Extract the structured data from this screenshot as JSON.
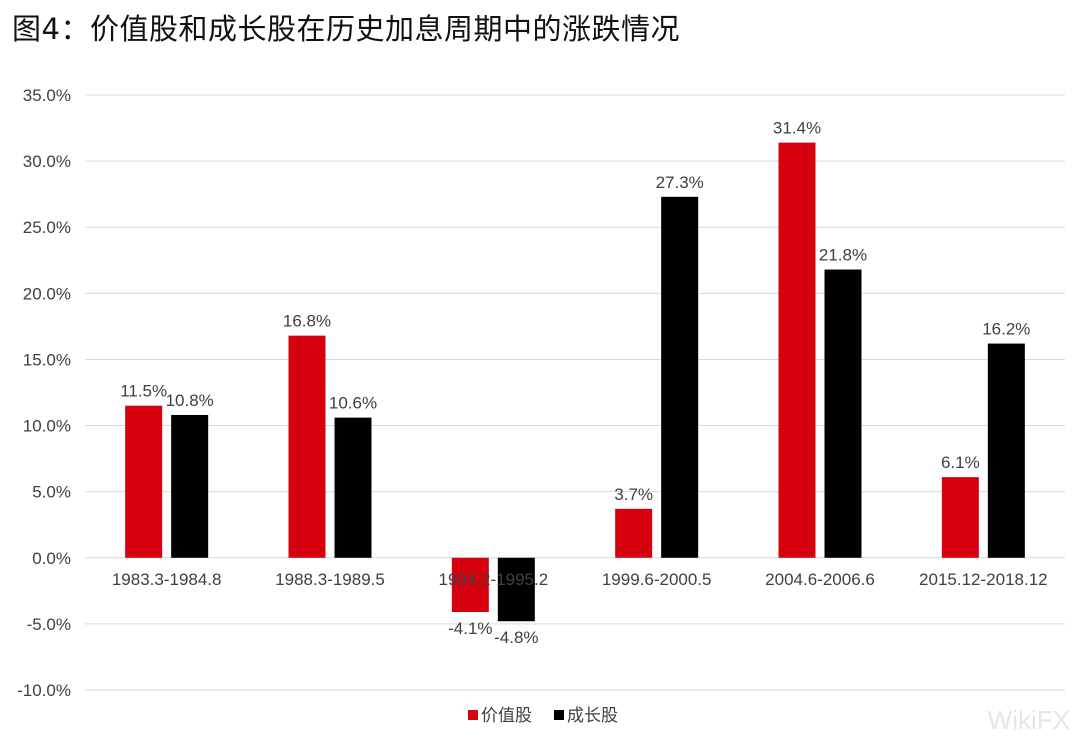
{
  "figure_title": "图4：价值股和成长股在历史加息周期中的涨跌情况",
  "watermark": "WikiFX",
  "colors": {
    "value": "#d7000f",
    "growth": "#000000",
    "grid": "#d9d9d9",
    "text": "#404040"
  },
  "chart_data": {
    "type": "bar",
    "title": "",
    "xlabel": "",
    "ylabel": "",
    "categories": [
      "1983.3-1984.8",
      "1988.3-1989.5",
      "1994.2-1995.2",
      "1999.6-2000.5",
      "2004.6-2006.6",
      "2015.12-2018.12"
    ],
    "series": [
      {
        "name": "价值股",
        "values": [
          11.5,
          16.8,
          -4.1,
          3.7,
          31.4,
          6.1
        ],
        "labels": [
          "11.5%",
          "16.8%",
          "-4.1%",
          "3.7%",
          "31.4%",
          "6.1%"
        ]
      },
      {
        "name": "成长股",
        "values": [
          10.8,
          10.6,
          -4.8,
          27.3,
          21.8,
          16.2
        ],
        "labels": [
          "10.8%",
          "10.6%",
          "-4.8%",
          "27.3%",
          "21.8%",
          "16.2%"
        ]
      }
    ],
    "ylim": [
      -10,
      35
    ],
    "yticks": [
      -10,
      -5,
      0,
      5,
      10,
      15,
      20,
      25,
      30,
      35
    ],
    "ytick_labels": [
      "-10.0%",
      "-5.0%",
      "0.0%",
      "5.0%",
      "10.0%",
      "15.0%",
      "20.0%",
      "25.0%",
      "30.0%",
      "35.0%"
    ],
    "grid": true,
    "legend_position": "bottom-center"
  }
}
